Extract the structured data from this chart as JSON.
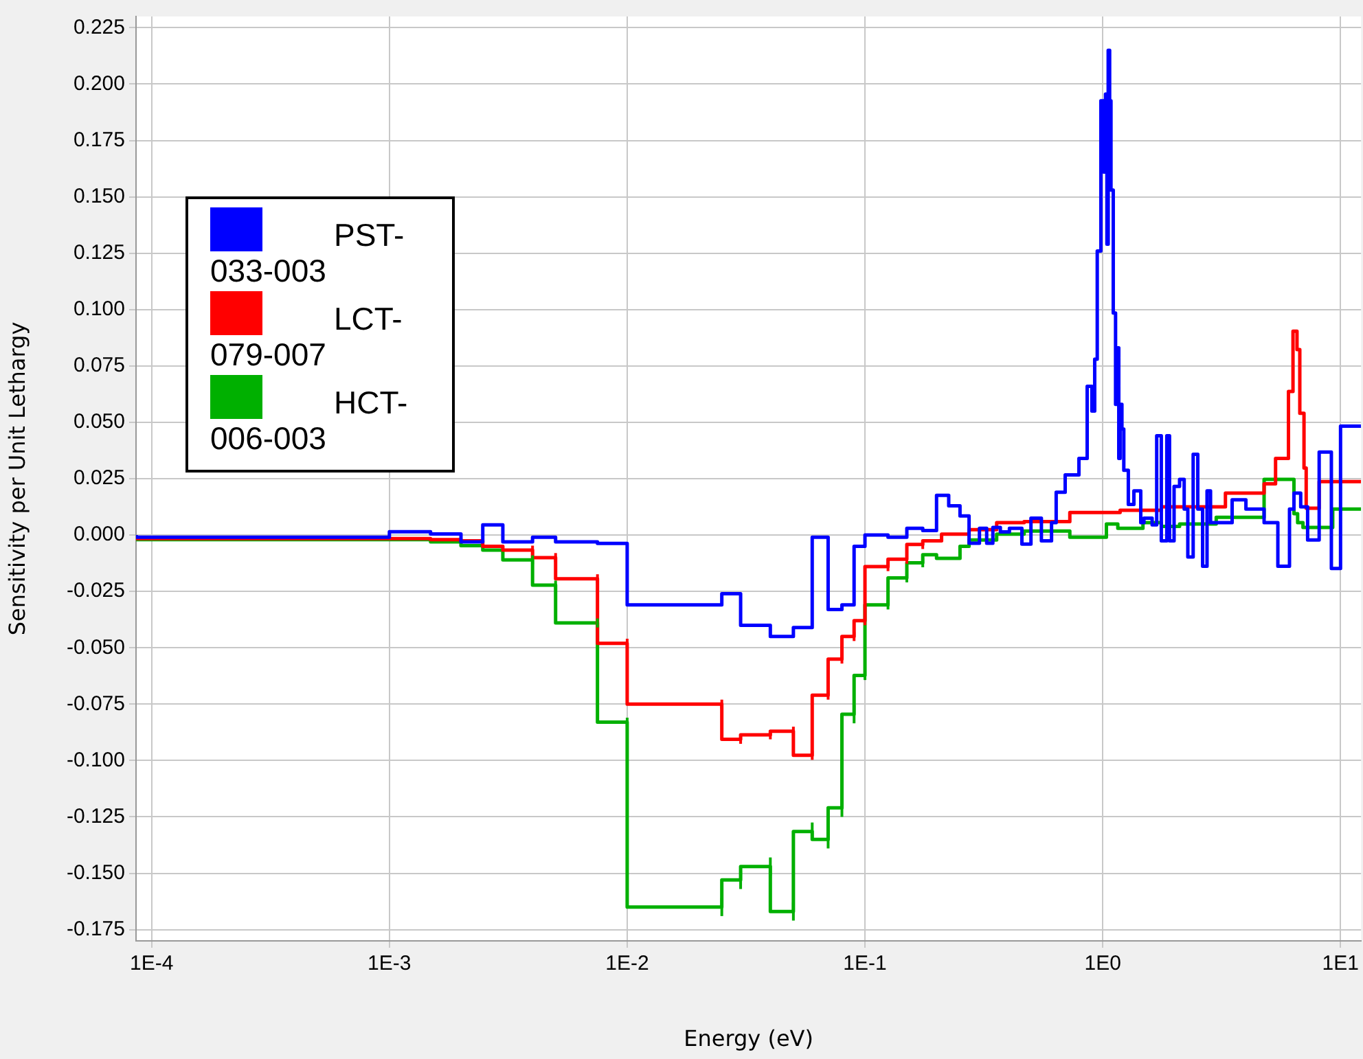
{
  "chart_data": {
    "type": "step",
    "xlabel": "Energy (eV)",
    "ylabel": "Sensitivity per Unit Lethargy",
    "log": "x",
    "grid": true,
    "legend": "top left",
    "marker": "none",
    "line_style": "solid",
    "xlim": [
      8.6e-05,
      12.2
    ],
    "xticks": [
      {
        "value": 0.0001,
        "label": "1E-4"
      },
      {
        "value": 0.001,
        "label": "1E-3"
      },
      {
        "value": 0.01,
        "label": "1E-2"
      },
      {
        "value": 0.1,
        "label": "1E-1"
      },
      {
        "value": 1,
        "label": "1E0"
      },
      {
        "value": 10,
        "label": "1E1"
      }
    ],
    "ylim": [
      -0.18,
      0.23
    ],
    "yticks": [
      {
        "value": -0.175,
        "label": "-0.175"
      },
      {
        "value": -0.15,
        "label": "-0.150"
      },
      {
        "value": -0.125,
        "label": "-0.125"
      },
      {
        "value": -0.1,
        "label": "-0.100"
      },
      {
        "value": -0.075,
        "label": "-0.075"
      },
      {
        "value": -0.05,
        "label": "-0.050"
      },
      {
        "value": -0.025,
        "label": "-0.025"
      },
      {
        "value": 0,
        "label": "0.000"
      },
      {
        "value": 0.025,
        "label": "0.025"
      },
      {
        "value": 0.05,
        "label": "0.050"
      },
      {
        "value": 0.075,
        "label": "0.075"
      },
      {
        "value": 0.1,
        "label": "0.100"
      },
      {
        "value": 0.125,
        "label": "0.125"
      },
      {
        "value": 0.15,
        "label": "0.150"
      },
      {
        "value": 0.175,
        "label": "0.175"
      },
      {
        "value": 0.2,
        "label": "0.200"
      },
      {
        "value": 0.225,
        "label": "0.225"
      }
    ],
    "series": [
      {
        "name": "PST-033-003",
        "color": "#0000ff",
        "x": [
          8.6e-05,
          0.001,
          0.00149,
          0.002,
          0.00247,
          0.003,
          0.004,
          0.005,
          0.0075,
          0.01,
          0.025,
          0.03,
          0.04,
          0.05,
          0.06,
          0.07,
          0.08,
          0.09,
          0.1,
          0.125,
          0.15,
          0.175,
          0.2,
          0.225,
          0.251,
          0.274,
          0.303,
          0.325,
          0.345,
          0.371,
          0.405,
          0.457,
          0.499,
          0.552,
          0.609,
          0.637,
          0.695,
          0.794,
          0.86,
          0.9,
          0.925,
          0.948,
          0.982,
          1.009,
          1.027,
          1.041,
          1.054,
          1.069,
          1.083,
          1.107,
          1.132,
          1.147,
          1.168,
          1.183,
          1.204,
          1.226,
          1.281,
          1.352,
          1.445,
          1.49,
          1.613,
          1.686,
          1.763,
          1.859,
          1.909,
          1.995,
          2.104,
          2.2,
          2.279,
          2.4,
          2.51,
          2.63,
          2.745,
          2.84,
          3.5,
          4.0,
          4.77,
          5.45,
          6.1,
          6.37,
          6.8,
          7.27,
          8.13,
          9.15,
          10,
          11.57,
          12.2
        ],
        "values": [
          0,
          -0.001,
          0.0015,
          0.0005,
          -0.003,
          0.0045,
          -0.003,
          -0.001,
          -0.003,
          -0.0037,
          -0.031,
          -0.026,
          -0.04,
          -0.045,
          -0.041,
          -0.001,
          -0.033,
          -0.031,
          -0.005,
          0,
          -0.001,
          0.003,
          0.002,
          0.0176,
          0.013,
          0.0085,
          -0.0036,
          0.003,
          -0.0036,
          0.0034,
          0.0014,
          0.003,
          -0.004,
          0.0075,
          -0.0026,
          0.0055,
          0.019,
          0.0267,
          0.034,
          0.066,
          0.055,
          0.078,
          0.126,
          0.1926,
          0.161,
          0.1956,
          0.129,
          0.215,
          0.1926,
          0.153,
          0.0985,
          0.058,
          0.083,
          0.034,
          0.058,
          0.047,
          0.0287,
          0.0136,
          0.0196,
          0.0055,
          0.0075,
          0.0045,
          0.044,
          -0.0026,
          0.044,
          -0.0026,
          0.0216,
          0.0247,
          0.0115,
          -0.0097,
          0.0358,
          0.0115,
          -0.0138,
          0.0196,
          0.0055,
          0.0156,
          0.0115,
          0.0055,
          -0.0138,
          0.0115,
          0.0186,
          0.0125,
          -0.0022,
          0.0368,
          -0.0148,
          0.0483,
          0.0483
        ]
      },
      {
        "name": "LCT-079-007",
        "color": "#ff0000",
        "x": [
          8.6e-05,
          0.00149,
          0.002,
          0.00247,
          0.003,
          0.004,
          0.005,
          0.0075,
          0.01,
          0.025,
          0.03,
          0.04,
          0.05,
          0.06,
          0.07,
          0.08,
          0.09,
          0.1,
          0.125,
          0.15,
          0.175,
          0.21,
          0.274,
          0.358,
          0.467,
          0.727,
          1.183,
          1.763,
          3.28,
          4.77,
          5.33,
          6.04,
          6.31,
          6.56,
          6.74,
          7.02,
          7.17,
          8.13,
          11.83,
          12.2
        ],
        "values": [
          0,
          -0.0016,
          -0.002,
          -0.0026,
          -0.005,
          -0.0067,
          -0.01,
          -0.0194,
          -0.048,
          -0.075,
          -0.0906,
          -0.0886,
          -0.087,
          -0.0977,
          -0.071,
          -0.055,
          -0.045,
          -0.038,
          -0.014,
          -0.0107,
          -0.0042,
          -0.0026,
          0.0004,
          0.0024,
          0.0055,
          0.006,
          0.01,
          0.011,
          0.0125,
          0.0186,
          0.0227,
          0.034,
          0.0637,
          0.0904,
          0.0823,
          0.054,
          0.0297,
          0.0119,
          0.0237,
          0.0237
        ],
        "errors": [
          null,
          null,
          null,
          null,
          null,
          0.002,
          0.002,
          0.002,
          0.002,
          0.002,
          0.002,
          0.002,
          0.002,
          0.002,
          0.002,
          0.002,
          0.002,
          0.002,
          0.002,
          0.002,
          0.002,
          null,
          null,
          null,
          null,
          null,
          null,
          null,
          null,
          null,
          null,
          null,
          null,
          null,
          null,
          null,
          null,
          null,
          null,
          null
        ]
      },
      {
        "name": "HCT-006-003",
        "color": "#00b000",
        "x": [
          8.6e-05,
          0.00149,
          0.002,
          0.00247,
          0.003,
          0.004,
          0.005,
          0.0075,
          0.01,
          0.025,
          0.03,
          0.04,
          0.05,
          0.06,
          0.07,
          0.08,
          0.09,
          0.1,
          0.125,
          0.15,
          0.175,
          0.2,
          0.251,
          0.274,
          0.358,
          0.467,
          0.727,
          1.036,
          1.157,
          1.476,
          1.763,
          2.104,
          3.0,
          4.77,
          6.37,
          6.6,
          6.95,
          9.27,
          11.83,
          12.2
        ],
        "values": [
          0,
          -0.002,
          -0.003,
          -0.0047,
          -0.0067,
          -0.011,
          -0.0222,
          -0.039,
          -0.083,
          -0.165,
          -0.153,
          -0.147,
          -0.167,
          -0.1315,
          -0.135,
          -0.121,
          -0.0795,
          -0.0623,
          -0.031,
          -0.019,
          -0.0123,
          -0.0087,
          -0.0103,
          -0.005,
          -0.0022,
          0.0004,
          0.0018,
          -0.001,
          0.0049,
          0.003,
          0.0055,
          0.0038,
          0.0049,
          0.0079,
          0.0247,
          0.0095,
          0.0055,
          0.0034,
          0.0115,
          0.0115
        ],
        "errors": [
          null,
          null,
          null,
          null,
          null,
          0.002,
          0.002,
          0.002,
          0.002,
          0.004,
          0.004,
          0.004,
          0.004,
          0.004,
          0.004,
          0.004,
          0.004,
          0.002,
          0.002,
          0.002,
          0.002,
          null,
          null,
          null,
          null,
          null,
          null,
          null,
          null,
          null,
          null,
          null,
          null,
          null,
          null,
          null,
          null,
          null,
          null,
          null
        ]
      }
    ]
  }
}
